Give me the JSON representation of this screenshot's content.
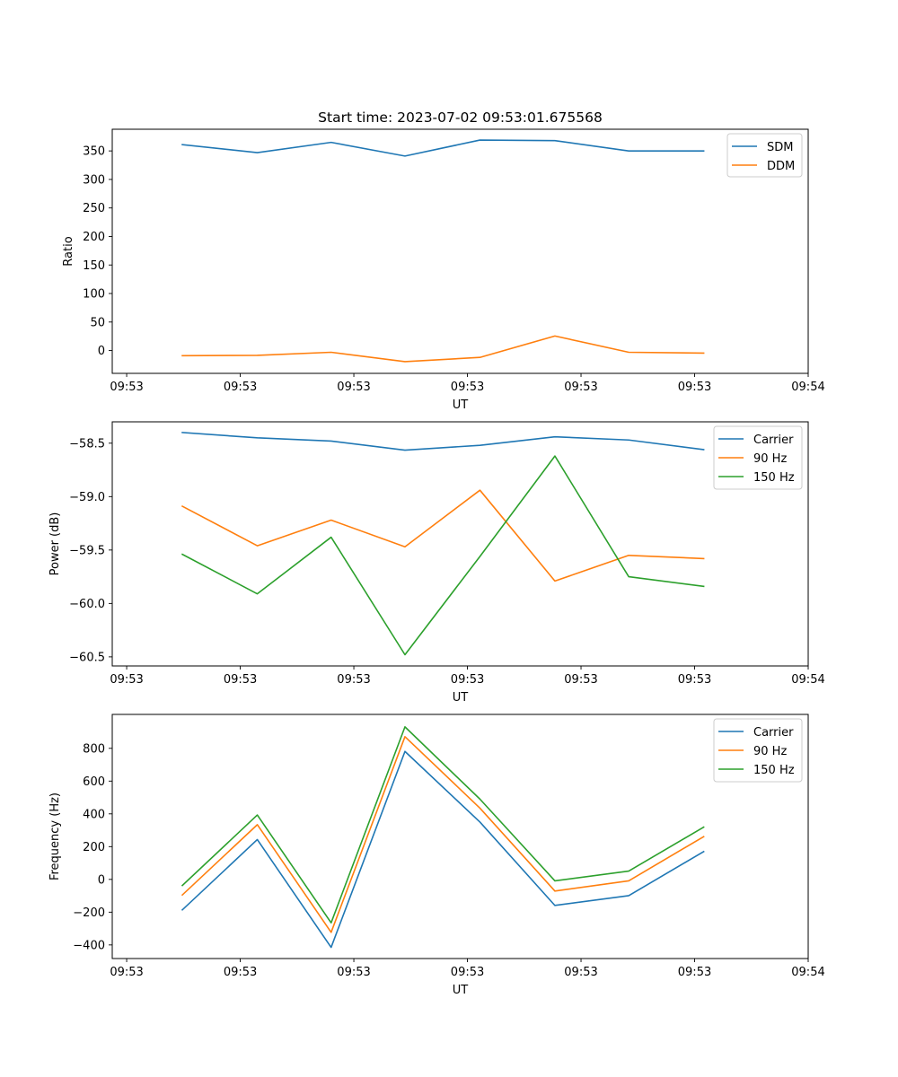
{
  "figure": {
    "title": "Start time: 2023-07-02 09:53:01.675568"
  },
  "chart_data": [
    {
      "type": "line",
      "title": "Start time: 2023-07-02 09:53:01.675568",
      "xlabel": "UT",
      "ylabel": "Ratio",
      "x_units": "seconds after 09:53:00",
      "xlim": [
        -1.27,
        60
      ],
      "ylim": [
        -40,
        388
      ],
      "xticks": [
        0,
        10,
        20,
        30,
        40,
        50,
        60
      ],
      "xtick_labels": [
        "09:53",
        "09:53",
        "09:53",
        "09:53",
        "09:53",
        "09:53",
        "09:54"
      ],
      "yticks": [
        0,
        50,
        100,
        150,
        200,
        250,
        300,
        350
      ],
      "ytick_labels": [
        "0",
        "50",
        "100",
        "150",
        "200",
        "250",
        "300",
        "350"
      ],
      "grid": false,
      "legend": "top-right",
      "x": [
        4.9,
        11.5,
        18.0,
        24.5,
        31.1,
        37.7,
        44.2,
        50.8
      ],
      "series": [
        {
          "name": "SDM",
          "color": "#1f77b4",
          "values": [
            361,
            347,
            365,
            341,
            369,
            368,
            350,
            350
          ]
        },
        {
          "name": "DDM",
          "color": "#ff7f0e",
          "values": [
            -9,
            -8.5,
            -3,
            -19.5,
            -12,
            25.5,
            -3,
            -4.5
          ]
        }
      ]
    },
    {
      "type": "line",
      "title": "",
      "xlabel": "UT",
      "ylabel": "Power (dB)",
      "x_units": "seconds after 09:53:00",
      "xlim": [
        -1.27,
        60
      ],
      "ylim": [
        -60.585,
        -58.3
      ],
      "xticks": [
        0,
        10,
        20,
        30,
        40,
        50,
        60
      ],
      "xtick_labels": [
        "09:53",
        "09:53",
        "09:53",
        "09:53",
        "09:53",
        "09:53",
        "09:54"
      ],
      "yticks": [
        -60.5,
        -60.0,
        -59.5,
        -59.0,
        -58.5
      ],
      "ytick_labels": [
        "−60.5",
        "−60.0",
        "−59.5",
        "−59.0",
        "−58.5"
      ],
      "grid": false,
      "legend": "top-right",
      "x": [
        4.9,
        11.5,
        18.0,
        24.5,
        31.1,
        37.7,
        44.2,
        50.8
      ],
      "series": [
        {
          "name": "Carrier",
          "color": "#1f77b4",
          "values": [
            -58.4,
            -58.45,
            -58.48,
            -58.565,
            -58.52,
            -58.44,
            -58.47,
            -58.56
          ]
        },
        {
          "name": "90 Hz",
          "color": "#ff7f0e",
          "values": [
            -59.09,
            -59.46,
            -59.22,
            -59.47,
            -58.94,
            -59.79,
            -59.55,
            -59.58
          ]
        },
        {
          "name": "150 Hz",
          "color": "#2ca02c",
          "values": [
            -59.54,
            -59.91,
            -59.38,
            -60.48,
            -59.56,
            -58.62,
            -59.75,
            -59.84
          ]
        }
      ]
    },
    {
      "type": "line",
      "title": "",
      "xlabel": "UT",
      "ylabel": "Frequency (Hz)",
      "x_units": "seconds after 09:53:00",
      "xlim": [
        -1.27,
        60
      ],
      "ylim": [
        -483,
        1007
      ],
      "xticks": [
        0,
        10,
        20,
        30,
        40,
        50,
        60
      ],
      "xtick_labels": [
        "09:53",
        "09:53",
        "09:53",
        "09:53",
        "09:53",
        "09:53",
        "09:54"
      ],
      "yticks": [
        -400,
        -200,
        0,
        200,
        400,
        600,
        800
      ],
      "ytick_labels": [
        "−400",
        "−200",
        "0",
        "200",
        "400",
        "600",
        "800"
      ],
      "grid": false,
      "legend": "top-right",
      "x": [
        4.9,
        11.5,
        18.0,
        24.5,
        31.1,
        37.7,
        44.2,
        50.8
      ],
      "series": [
        {
          "name": "Carrier",
          "color": "#1f77b4",
          "values": [
            -186,
            243,
            -415,
            781,
            350,
            -159,
            -99,
            170
          ]
        },
        {
          "name": "90 Hz",
          "color": "#ff7f0e",
          "values": [
            -95,
            334,
            -323,
            871,
            435,
            -71,
            -9,
            261
          ]
        },
        {
          "name": "150 Hz",
          "color": "#2ca02c",
          "values": [
            -37,
            393,
            -265,
            931,
            490,
            -9,
            51,
            319
          ]
        }
      ]
    }
  ]
}
